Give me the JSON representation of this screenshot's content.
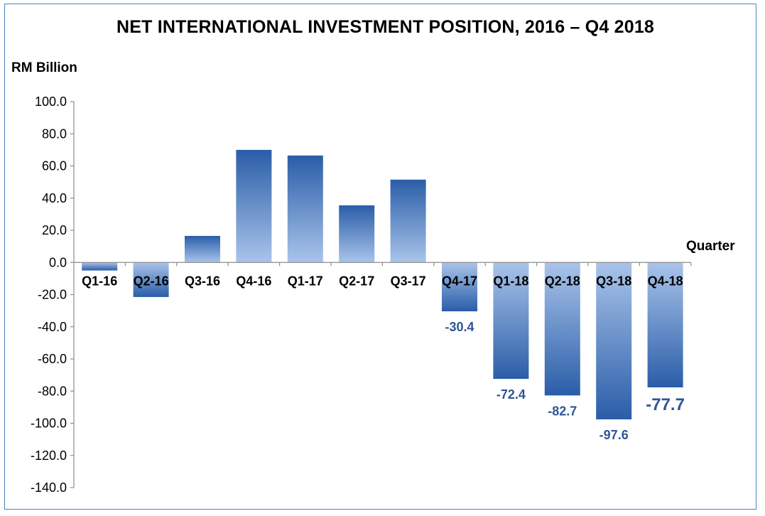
{
  "chart_data": {
    "type": "bar",
    "title": "NET INTERNATIONAL INVESTMENT POSITION, 2016 – Q4 2018",
    "ylabel": "RM Billion",
    "xlabel": "Quarter",
    "categories": [
      "Q1-16",
      "Q2-16",
      "Q3-16",
      "Q4-16",
      "Q1-17",
      "Q2-17",
      "Q3-17",
      "Q4-17",
      "Q1-18",
      "Q2-18",
      "Q3-18",
      "Q4-18"
    ],
    "values": [
      -5.0,
      -21.5,
      16.5,
      70.0,
      66.5,
      35.5,
      51.5,
      -30.4,
      -72.4,
      -82.7,
      -97.6,
      -77.7
    ],
    "data_labels": [
      "",
      "",
      "",
      "",
      "",
      "",
      "",
      "-30.4",
      "-72.4",
      "-82.7",
      "-97.6",
      "-77.7"
    ],
    "ylim": [
      -140,
      100
    ],
    "yticks": [
      "100.0",
      "80.0",
      "60.0",
      "40.0",
      "20.0",
      "0.0",
      "-20.0",
      "-40.0",
      "-60.0",
      "-80.0",
      "-100.0",
      "-120.0",
      "-140.0"
    ],
    "grid": false,
    "legend": "none",
    "colors": {
      "bar_light": "#a9c4ea",
      "bar_dark": "#2a5da8",
      "data_label": "#2f5597",
      "frame": "#4f81bd"
    }
  }
}
